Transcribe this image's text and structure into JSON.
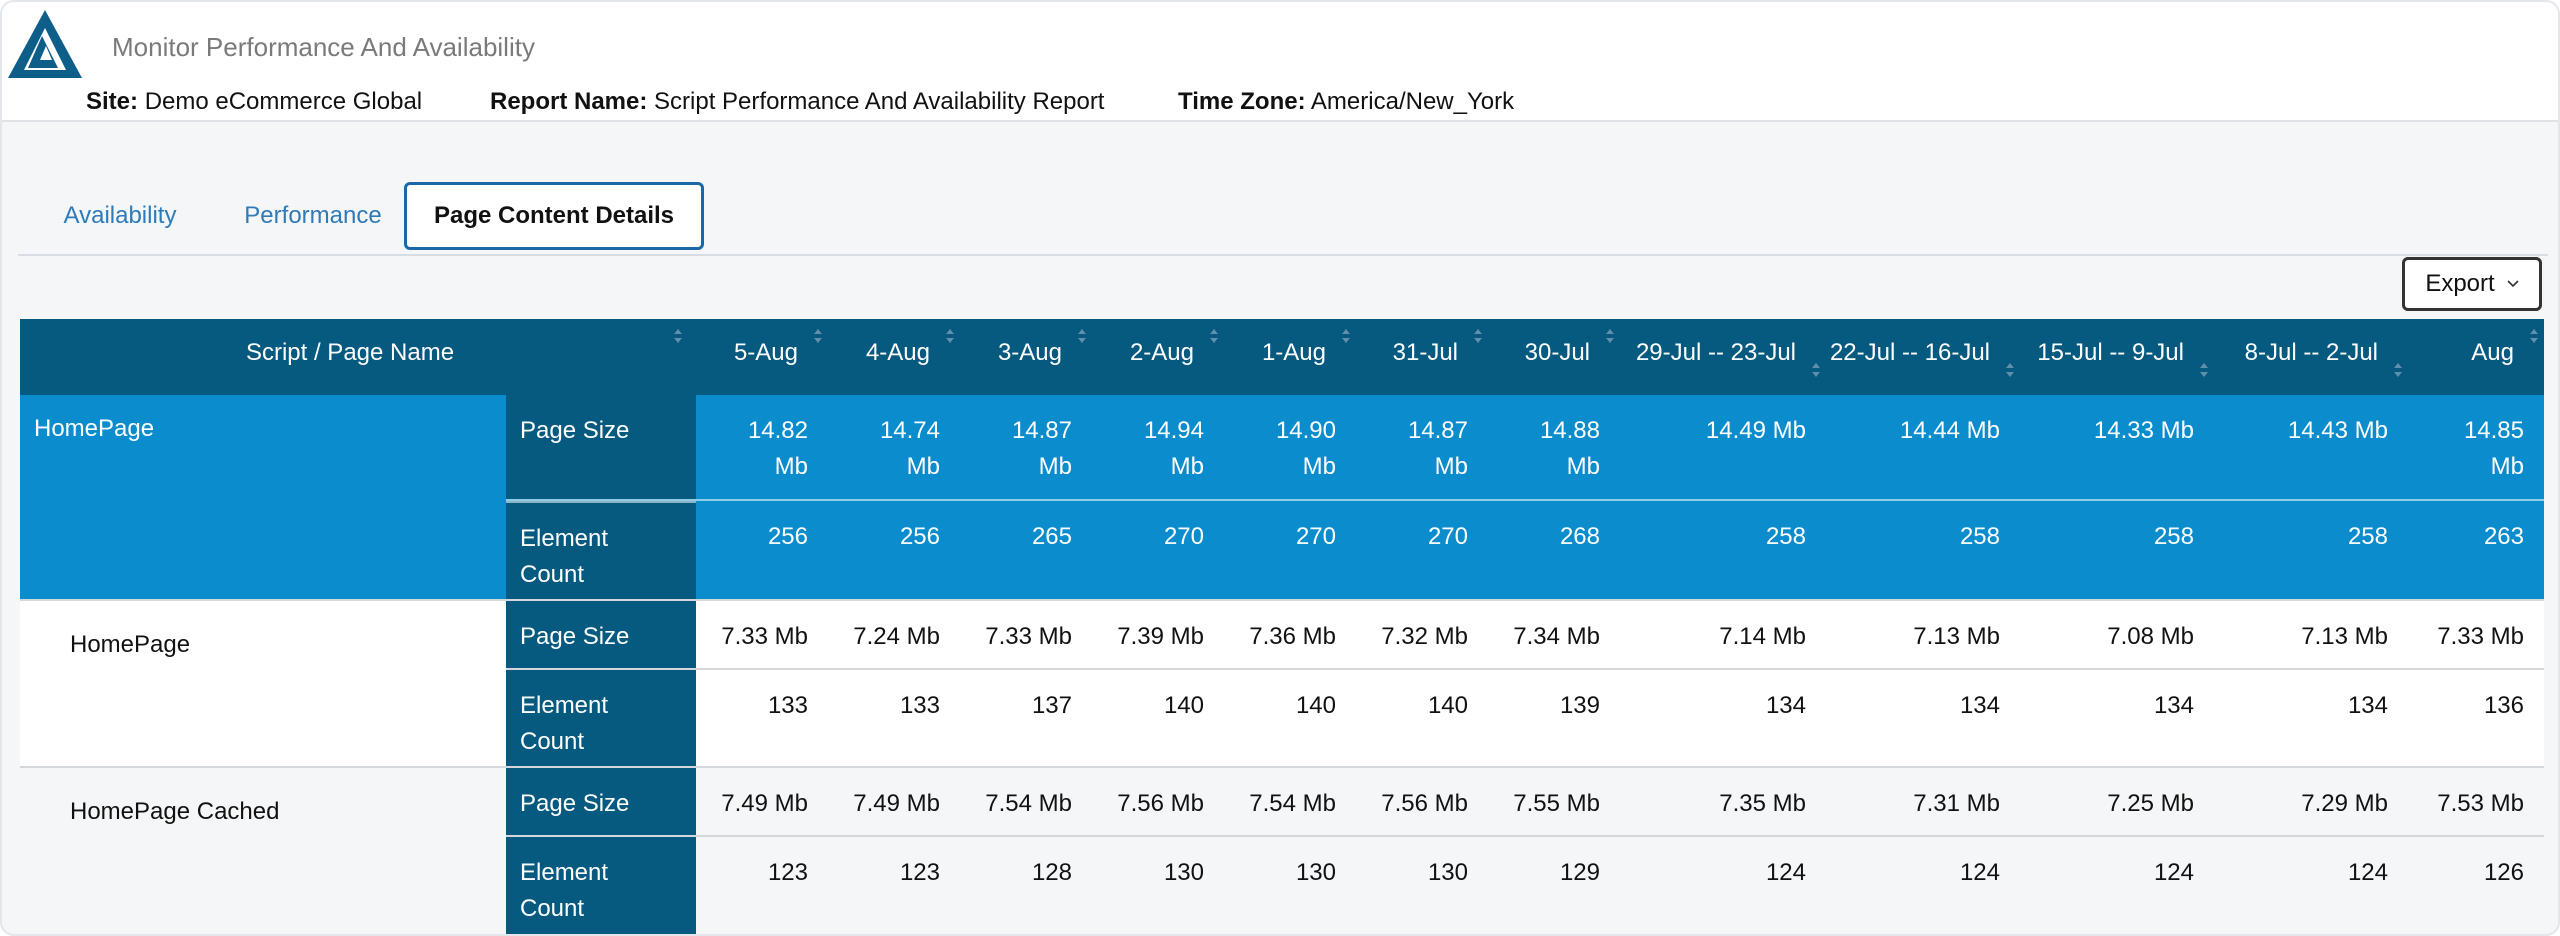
{
  "app": {
    "title": "Monitor Performance And Availability"
  },
  "info": {
    "site_label": "Site:",
    "site_value": "Demo eCommerce Global",
    "report_label": "Report Name:",
    "report_value": "Script Performance And Availability Report",
    "tz_label": "Time Zone:",
    "tz_value": "America/New_York"
  },
  "tabs": [
    {
      "label": "Availability"
    },
    {
      "label": "Performance"
    },
    {
      "label": "Page Content Details"
    }
  ],
  "export": {
    "label": "Export"
  },
  "table": {
    "first_header": "Script / Page Name",
    "columns": [
      "5-Aug",
      "4-Aug",
      "3-Aug",
      "2-Aug",
      "1-Aug",
      "31-Jul",
      "30-Jul",
      "29-Jul -- 23-Jul",
      "22-Jul -- 16-Jul",
      "15-Jul -- 9-Jul",
      "8-Jul -- 2-Jul",
      "Aug"
    ],
    "groups": [
      {
        "name": "HomePage",
        "rows": [
          {
            "metric": "Page Size",
            "values": [
              "14.82 Mb",
              "14.74 Mb",
              "14.87 Mb",
              "14.94 Mb",
              "14.90 Mb",
              "14.87 Mb",
              "14.88 Mb",
              "14.49 Mb",
              "14.44 Mb",
              "14.33 Mb",
              "14.43 Mb",
              "14.85 Mb"
            ]
          },
          {
            "metric": "Element Count",
            "values": [
              "256",
              "256",
              "265",
              "270",
              "270",
              "270",
              "268",
              "258",
              "258",
              "258",
              "258",
              "263"
            ]
          }
        ]
      },
      {
        "name": "HomePage",
        "rows": [
          {
            "metric": "Page Size",
            "values": [
              "7.33 Mb",
              "7.24 Mb",
              "7.33 Mb",
              "7.39 Mb",
              "7.36 Mb",
              "7.32 Mb",
              "7.34 Mb",
              "7.14 Mb",
              "7.13 Mb",
              "7.08 Mb",
              "7.13 Mb",
              "7.33 Mb"
            ]
          },
          {
            "metric": "Element Count",
            "values": [
              "133",
              "133",
              "137",
              "140",
              "140",
              "140",
              "139",
              "134",
              "134",
              "134",
              "134",
              "136"
            ]
          }
        ]
      },
      {
        "name": "HomePage Cached",
        "rows": [
          {
            "metric": "Page Size",
            "values": [
              "7.49 Mb",
              "7.49 Mb",
              "7.54 Mb",
              "7.56 Mb",
              "7.54 Mb",
              "7.56 Mb",
              "7.55 Mb",
              "7.35 Mb",
              "7.31 Mb",
              "7.25 Mb",
              "7.29 Mb",
              "7.53 Mb"
            ]
          },
          {
            "metric": "Element Count",
            "values": [
              "123",
              "123",
              "128",
              "130",
              "130",
              "130",
              "129",
              "124",
              "124",
              "124",
              "124",
              "126"
            ]
          }
        ]
      }
    ]
  },
  "colors": {
    "header_bg": "#065a7f",
    "total_row_bg": "#0a8ccd",
    "accent": "#1b68a8",
    "link": "#2f7ab8"
  }
}
